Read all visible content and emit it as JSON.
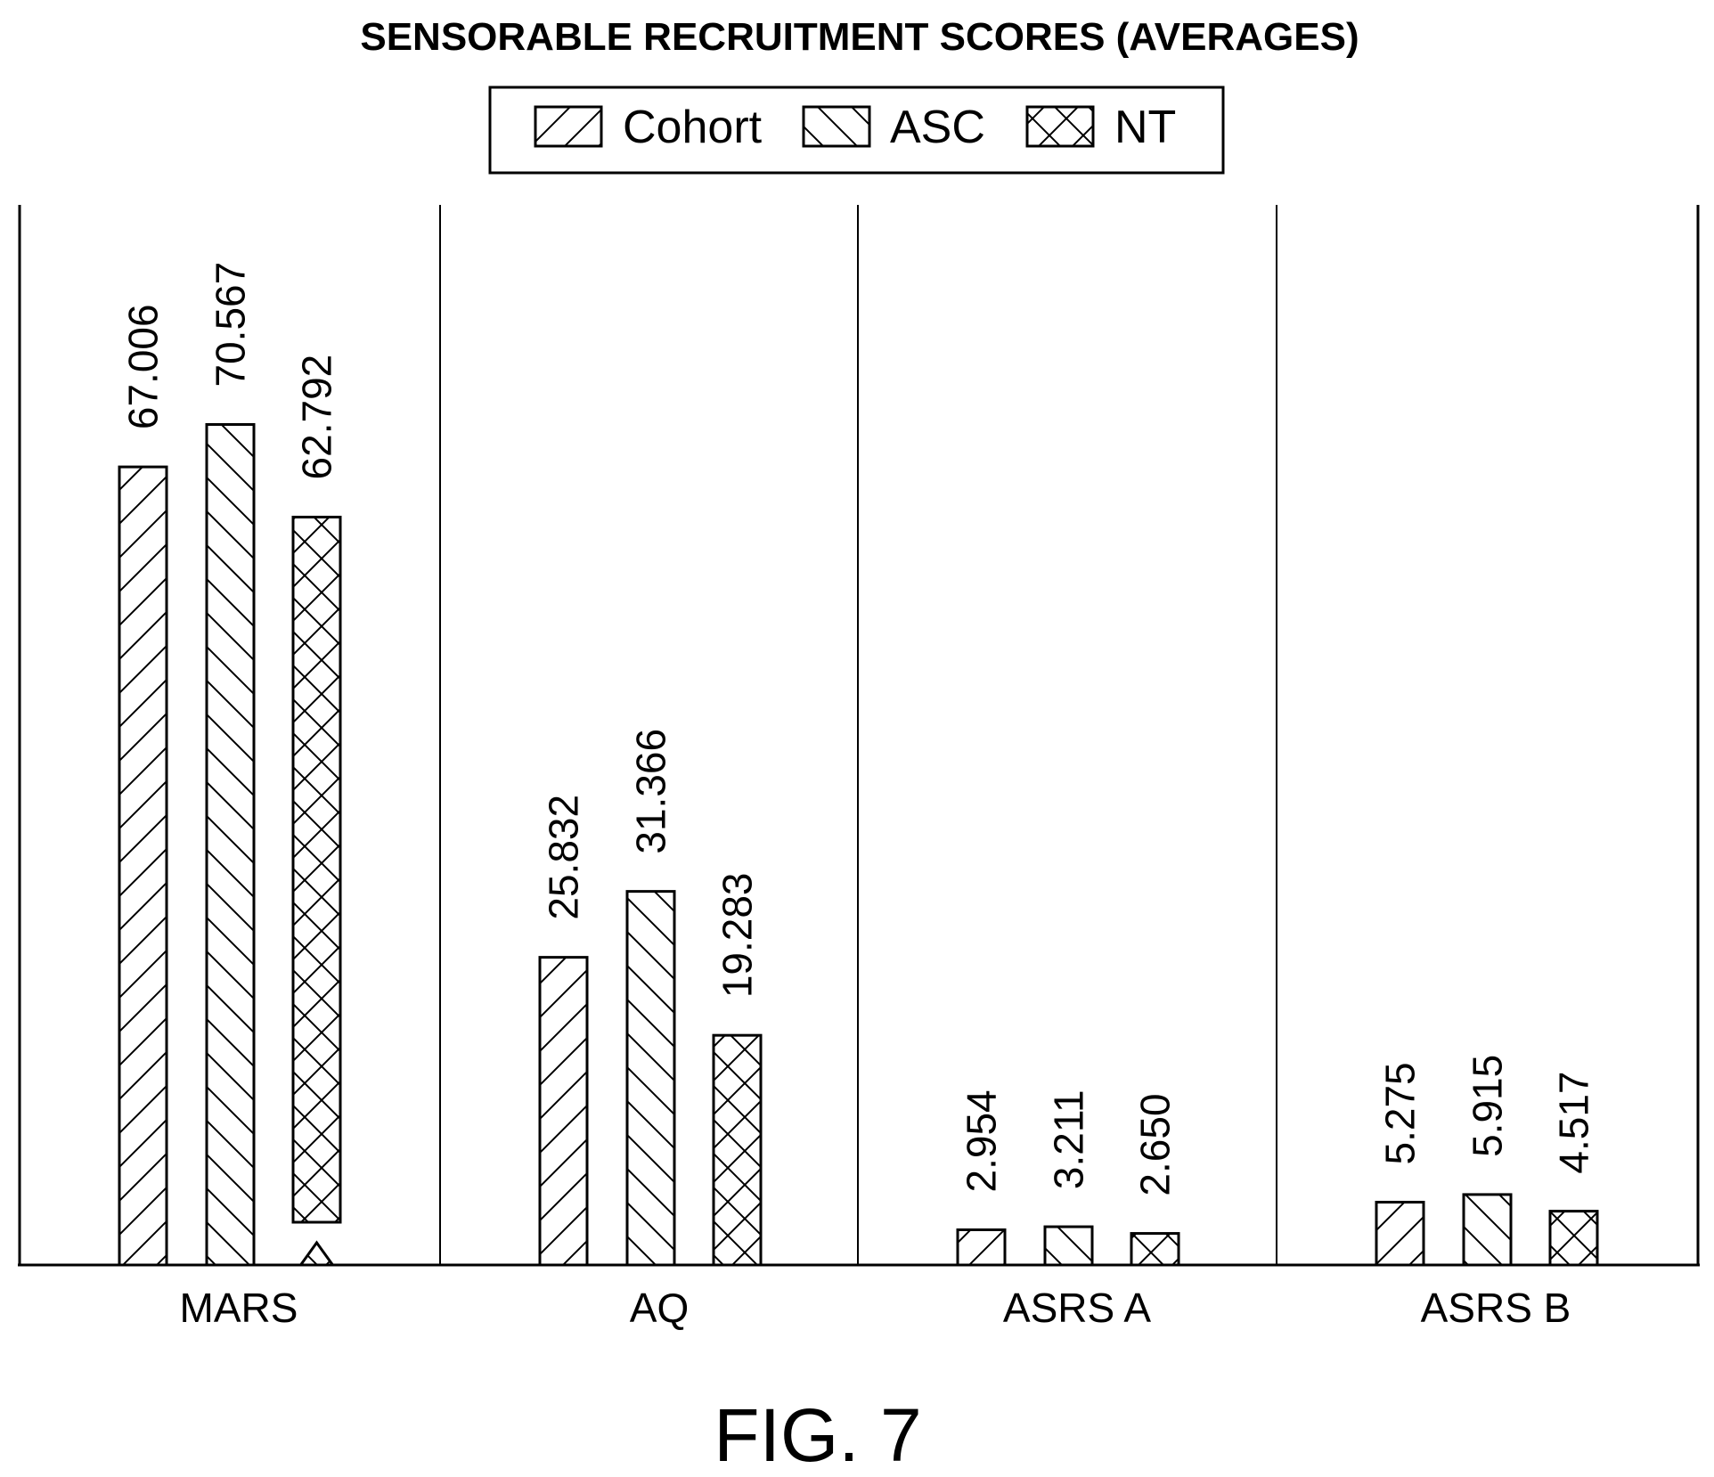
{
  "chart_data": {
    "type": "bar",
    "title": "SENSORABLE RECRUITMENT SCORES (AVERAGES)",
    "categories": [
      "MARS",
      "AQ",
      "ASRS A",
      "ASRS B"
    ],
    "series": [
      {
        "name": "Cohort",
        "pattern": "forward-hatch",
        "values": [
          67.006,
          25.832,
          2.954,
          5.275
        ],
        "labels": [
          "67.006",
          "25.832",
          "2.954",
          "5.275"
        ]
      },
      {
        "name": "ASC",
        "pattern": "back-hatch",
        "values": [
          70.567,
          31.366,
          3.211,
          5.915
        ],
        "labels": [
          "70.567",
          "31.366",
          "3.211",
          "5.915"
        ]
      },
      {
        "name": "NT",
        "pattern": "cross-hatch",
        "values": [
          62.792,
          19.283,
          2.65,
          4.517
        ],
        "labels": [
          "62.792",
          "19.283",
          "2.650",
          "4.517"
        ]
      }
    ],
    "ylim": [
      0,
      81
    ],
    "legend_position": "top-center",
    "grid": false,
    "category_separators": true,
    "axis_break": {
      "category": "MARS",
      "series": "NT"
    },
    "colors": {
      "stroke": "#000000",
      "background": "#ffffff"
    }
  },
  "caption": "FIG. 7"
}
